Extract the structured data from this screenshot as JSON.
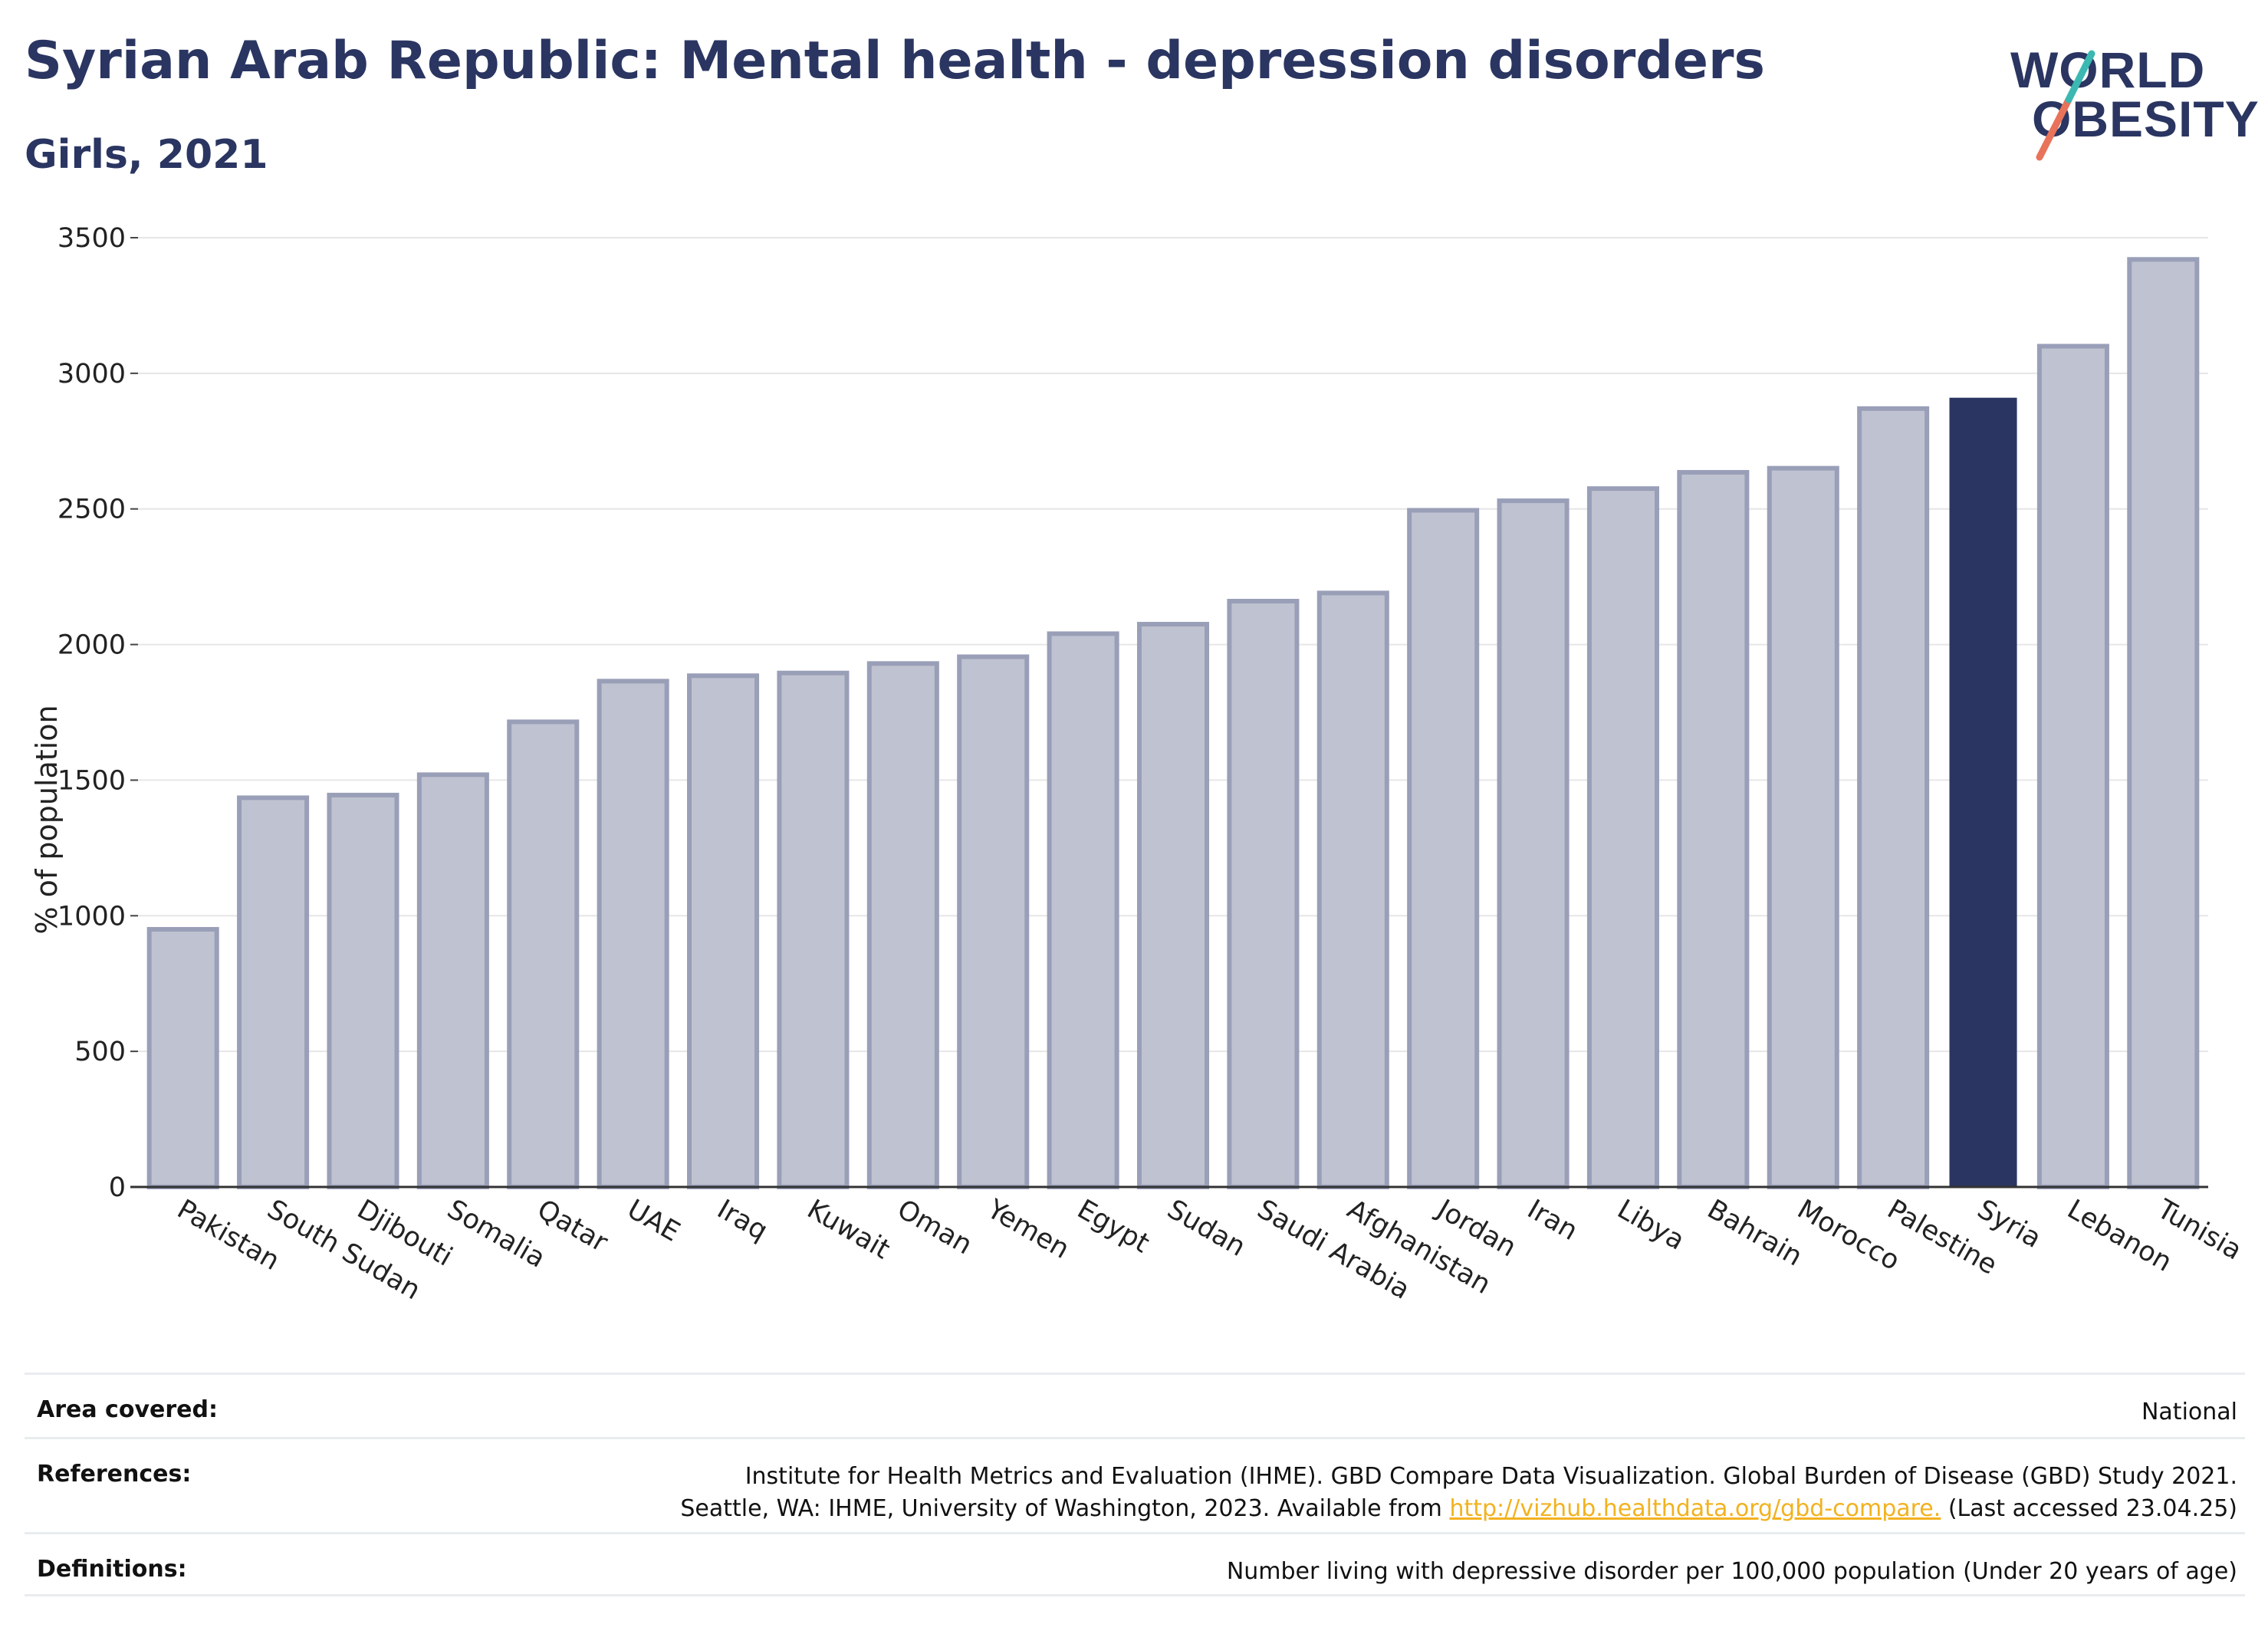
{
  "header": {
    "title": "Syrian Arab Republic: Mental health - depression disorders",
    "subtitle": "Girls, 2021"
  },
  "logo": {
    "line1": "WORLD",
    "line2": "OBESITY",
    "colors": {
      "teal": "#3bb8b1",
      "coral": "#e8735a",
      "navy": "#2a3561"
    }
  },
  "chart_data": {
    "type": "bar",
    "title": "Syrian Arab Republic: Mental health - depression disorders",
    "subtitle": "Girls, 2021",
    "ylabel": "% of population",
    "xlabel": "",
    "ylim": [
      0,
      3500
    ],
    "yticks": [
      0,
      500,
      1000,
      1500,
      2000,
      2500,
      3000,
      3500
    ],
    "grid": true,
    "highlight": "Syria",
    "colors": {
      "default": "#bfc2d0",
      "default_border": "#9a9fb8",
      "highlight": "#2a3561"
    },
    "categories": [
      "Pakistan",
      "South Sudan",
      "Djibouti",
      "Somalia",
      "Qatar",
      "UAE",
      "Iraq",
      "Kuwait",
      "Oman",
      "Yemen",
      "Egypt",
      "Sudan",
      "Saudi Arabia",
      "Afghanistan",
      "Jordan",
      "Iran",
      "Libya",
      "Bahrain",
      "Morocco",
      "Palestine",
      "Syria",
      "Lebanon",
      "Tunisia"
    ],
    "values": [
      950,
      1435,
      1445,
      1520,
      1715,
      1865,
      1885,
      1895,
      1930,
      1955,
      2040,
      2075,
      2160,
      2190,
      2495,
      2530,
      2575,
      2635,
      2650,
      2870,
      2910,
      3100,
      3420
    ]
  },
  "info": {
    "area_label": "Area covered:",
    "area_value": "National",
    "references_label": "References:",
    "references_line1": "Institute for Health Metrics and Evaluation (IHME). GBD Compare Data Visualization. Global Burden of Disease (GBD) Study 2021.",
    "references_line2_pre": "Seattle, WA: IHME, University of Washington, 2023. Available from ",
    "references_link": "http://vizhub.healthdata.org/gbd-compare.",
    "references_line2_post": " (Last accessed 23.04.25)",
    "definitions_label": "Definitions:",
    "definitions_value": "Number living with depressive disorder per 100,000 population (Under 20 years of age)"
  }
}
